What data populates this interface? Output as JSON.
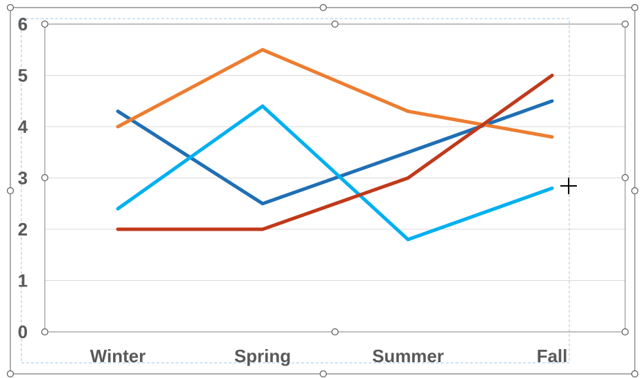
{
  "chart_data": {
    "type": "line",
    "categories": [
      "Winter",
      "Spring",
      "Summer",
      "Fall"
    ],
    "ylim": [
      0,
      6
    ],
    "yticks": [
      0,
      1,
      2,
      3,
      4,
      5,
      6
    ],
    "grid": true,
    "legend": "none",
    "series": [
      {
        "color": "#1F6FB4",
        "values": [
          4.3,
          2.5,
          3.5,
          4.5
        ]
      },
      {
        "color": "#ED7D31",
        "values": [
          4.0,
          5.5,
          4.3,
          3.8
        ]
      },
      {
        "color": "#00B0F0",
        "values": [
          2.4,
          4.4,
          1.8,
          2.8
        ]
      },
      {
        "color": "#C0391B",
        "values": [
          2.0,
          2.0,
          3.0,
          5.0
        ]
      }
    ]
  },
  "ui": {
    "selection_color": "#595959",
    "plot_area_border": "#9DC3E6",
    "handle_icon": "resize-handle-icon",
    "cursor_icon": "crosshair-cursor-icon"
  }
}
